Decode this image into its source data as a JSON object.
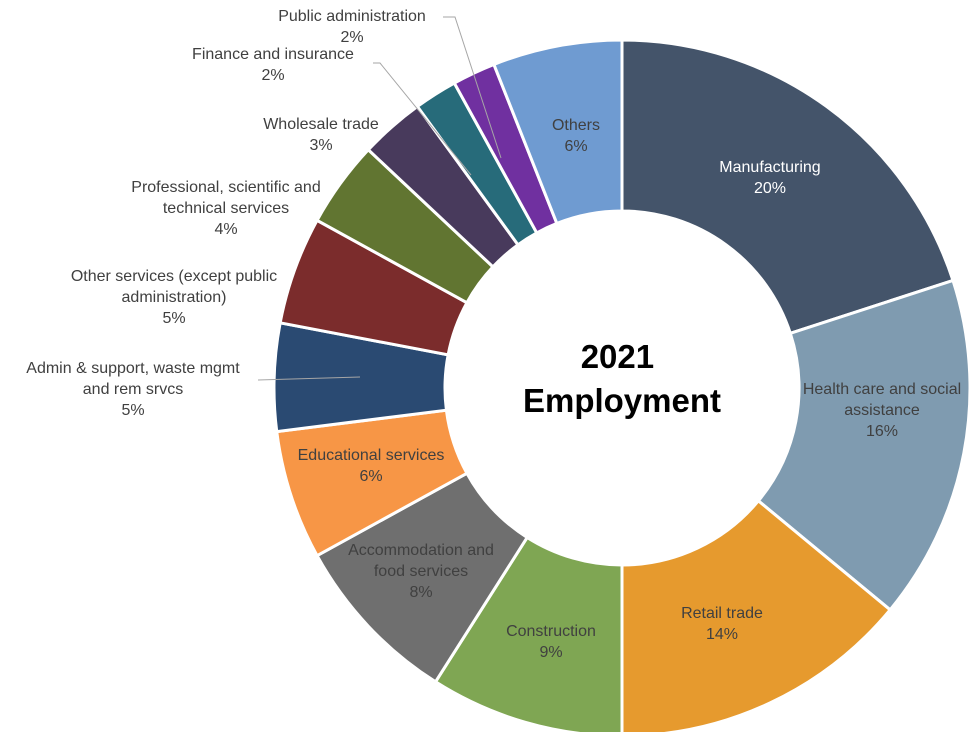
{
  "chart_data": {
    "type": "pie",
    "variant": "donut",
    "title": "",
    "center_label": [
      "2021",
      "Employment"
    ],
    "legend": "none",
    "unit": "%",
    "slices": [
      {
        "label": [
          "Manufacturing"
        ],
        "value": 20,
        "display": "20%",
        "color": "#44546a",
        "text_color": "#ffffff"
      },
      {
        "label": [
          "Health care and social",
          "assistance"
        ],
        "value": 16,
        "display": "16%",
        "color": "#7f9bb0",
        "text_color": "#404040"
      },
      {
        "label": [
          "Retail trade"
        ],
        "value": 14,
        "display": "14%",
        "color": "#e69a2e",
        "text_color": "#404040"
      },
      {
        "label": [
          "Construction"
        ],
        "value": 9,
        "display": "9%",
        "color": "#7fa653",
        "text_color": "#404040"
      },
      {
        "label": [
          "Accommodation and",
          "food services"
        ],
        "value": 8,
        "display": "8%",
        "color": "#6f6f6f",
        "text_color": "#404040"
      },
      {
        "label": [
          "Educational services"
        ],
        "value": 6,
        "display": "6%",
        "color": "#f79646",
        "text_color": "#404040"
      },
      {
        "label": [
          "Admin & support, waste mgmt",
          "and rem srvcs"
        ],
        "value": 5,
        "display": "5%",
        "color": "#2a4a72",
        "text_color": "#404040"
      },
      {
        "label": [
          "Other services (except public",
          "administration)"
        ],
        "value": 5,
        "display": "5%",
        "color": "#7b2c2c",
        "text_color": "#404040"
      },
      {
        "label": [
          "Professional, scientific and",
          "technical services"
        ],
        "value": 4,
        "display": "4%",
        "color": "#617531",
        "text_color": "#404040"
      },
      {
        "label": [
          "Wholesale trade"
        ],
        "value": 3,
        "display": "3%",
        "color": "#483a5c",
        "text_color": "#404040"
      },
      {
        "label": [
          "Finance and insurance"
        ],
        "value": 2,
        "display": "2%",
        "color": "#276b7a",
        "text_color": "#404040"
      },
      {
        "label": [
          "Public administration"
        ],
        "value": 2,
        "display": "2%",
        "color": "#7030a0",
        "text_color": "#404040"
      },
      {
        "label": [
          "Others"
        ],
        "value": 6,
        "display": "6%",
        "color": "#6f9bd1",
        "text_color": "#404040"
      }
    ]
  }
}
